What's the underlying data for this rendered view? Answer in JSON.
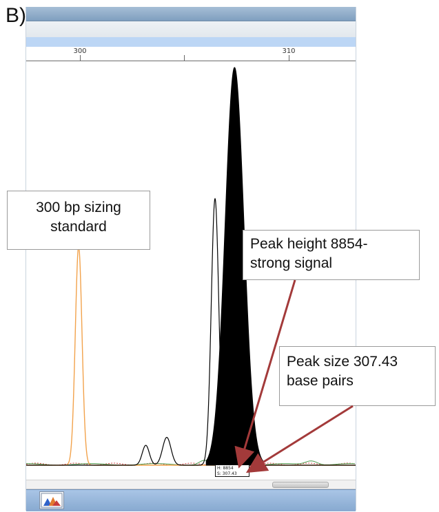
{
  "panel": {
    "label": "B)"
  },
  "ruler": {
    "ticks": [
      {
        "label": "300",
        "bp": 300
      },
      {
        "label": "310",
        "bp": 310
      }
    ]
  },
  "annotations": {
    "standard": {
      "line1": "300 bp sizing",
      "line2": "standard"
    },
    "height": {
      "line1": "Peak height 8854-",
      "line2": "strong signal"
    },
    "size": {
      "line1": "Peak size 307.43",
      "line2": "base pairs"
    }
  },
  "peak_popup": {
    "line1": "H: 8854",
    "line2": "S: 307.43"
  },
  "colors": {
    "orange_trace": "#f2a24b",
    "black_trace": "#000000",
    "arrow": "#a33a3a",
    "green_trace": "#4e9b4e",
    "red_trace": "#cc3d3d"
  },
  "icons": {
    "taskbar_app": "genemapper-icon"
  },
  "chart_data": {
    "type": "line",
    "x_axis_unit": "bp",
    "xlim": [
      297.5,
      313.2
    ],
    "series": [
      {
        "name": "",
        "color": "#f2a24b",
        "peaks": [
          {
            "x": 300,
            "height": 0.55,
            "width": 0.16
          }
        ]
      },
      {
        "name": "",
        "color": "#000000",
        "peaks": [
          {
            "x": 303.2,
            "height": 0.05,
            "width": 0.17
          },
          {
            "x": 304.2,
            "height": 0.07,
            "width": 0.2
          },
          {
            "x": 306.5,
            "height": 0.67,
            "width": 0.18
          },
          {
            "x": 307.43,
            "height": 1.0,
            "width": 0.45,
            "filled": true
          }
        ]
      }
    ]
  }
}
